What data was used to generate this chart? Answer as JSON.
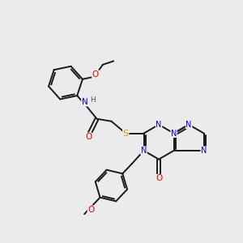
{
  "bg_color": "#ebebeb",
  "bond_color": "#1a1a1a",
  "atom_colors": {
    "N": "#0000ee",
    "O": "#ee0000",
    "S": "#bbaa00",
    "H": "#555555"
  },
  "figsize": [
    3.0,
    3.0
  ],
  "dpi": 100
}
